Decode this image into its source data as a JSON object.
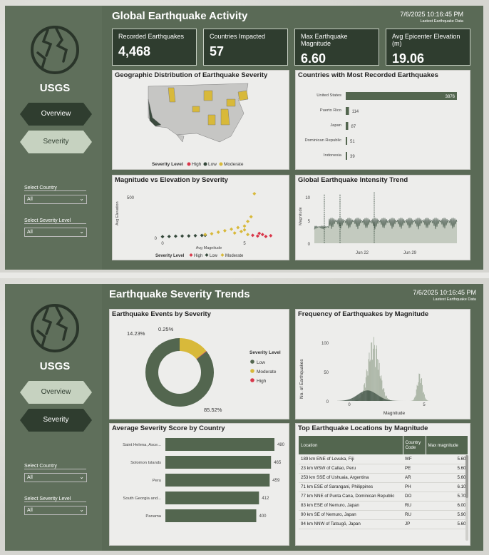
{
  "colors": {
    "dark_green": "#34483a",
    "moderate": "#d8b93a",
    "high": "#d9374a",
    "panel": "#5a6a56"
  },
  "page1": {
    "title": "Global Earthquake Activity",
    "datetime": "7/6/2025 10:16:45 PM",
    "datetime_sub": "Lastest Earthquake Data",
    "logo_icon": "earth-cracked-icon",
    "brand": "USGS",
    "nav": {
      "overview": "Overview",
      "severity": "Severity"
    },
    "filters": {
      "country_label": "Select Country",
      "country_value": "All",
      "severity_label": "Select Severity Level",
      "severity_value": "All"
    },
    "kpis": [
      {
        "label": "Recorded Earthquakes",
        "value": "4,468"
      },
      {
        "label": "Countries Impacted",
        "value": "57"
      },
      {
        "label": "Max Earthquake Magnitude",
        "value": "6.60"
      },
      {
        "label": "Avg Epicenter Elevation (m)",
        "value": "19.06"
      }
    ],
    "map": {
      "title": "Geographic Distribution of Earthquake Severity",
      "legend_title": "Severity Level",
      "legend": [
        "High",
        "Low",
        "Moderate"
      ]
    },
    "scatter_title": "Magnitude vs Elevation by Severity",
    "countries_title": "Countries with Most Recorded Earthquakes",
    "trend_title": "Global Earthquake Intensity Trend"
  },
  "page2": {
    "title": "Earthquake Severity Trends",
    "datetime": "7/6/2025 10:16:45 PM",
    "datetime_sub": "Lastest Earthquake Data",
    "logo_icon": "earth-cracked-icon",
    "brand": "USGS",
    "nav": {
      "overview": "Overview",
      "severity": "Severity"
    },
    "filters": {
      "country_label": "Select Country",
      "country_value": "All",
      "severity_label": "Select Severity Level",
      "severity_value": "All"
    },
    "donut_title": "Earthquake Events by Severity",
    "freq_title": "Frequency of Earthquakes by Magnitude",
    "score_title": "Average Severity Score by Country",
    "table": {
      "title": "Top Earthquake Locations by Magnitude",
      "headers": [
        "Location",
        "Country Code",
        "Max magnitude"
      ],
      "rows": [
        [
          "189 km ENE of Levuka, Fiji",
          "WF",
          "5.60"
        ],
        [
          "23 km WSW of Callao, Peru",
          "PE",
          "5.60"
        ],
        [
          "253 km SSE of Ushuaia, Argentina",
          "AR",
          "5.60"
        ],
        [
          "71 km ESE of Sarangani, Philippines",
          "PH",
          "6.10"
        ],
        [
          "77 km NNE of Punta Cana, Dominican Republic",
          "DO",
          "5.70"
        ],
        [
          "83 km ESE of Nemuro, Japan",
          "RU",
          "6.00"
        ],
        [
          "90 km SE of Nemuro, Japan",
          "RU",
          "5.90"
        ],
        [
          "94 km NNW of Tatsugō, Japan",
          "JP",
          "5.60"
        ]
      ]
    }
  },
  "chart_data": [
    {
      "type": "bar",
      "title": "Countries with Most Recorded Earthquakes",
      "categories": [
        "United States",
        "Puerto Rico",
        "Japan",
        "Dominican Republic",
        "Indonesia"
      ],
      "values": [
        3876,
        114,
        87,
        51,
        39
      ],
      "orientation": "horizontal"
    },
    {
      "type": "scatter",
      "title": "Magnitude vs Elevation by Severity",
      "xlabel": "Avg Magnitude",
      "ylabel": "Avg Elevation",
      "x_ticks": [
        "0",
        "5"
      ],
      "y_ticks": [
        "0",
        "500"
      ],
      "legend_title": "Severity Level",
      "series": [
        {
          "name": "High",
          "color": "#d9374a",
          "points": [
            [
              5.5,
              20
            ],
            [
              5.8,
              10
            ],
            [
              6.1,
              30
            ],
            [
              6.3,
              5
            ],
            [
              6.6,
              15
            ],
            [
              5.9,
              45
            ]
          ]
        },
        {
          "name": "Low",
          "color": "#34483a",
          "points": [
            [
              0.0,
              2
            ],
            [
              0.4,
              5
            ],
            [
              0.8,
              8
            ],
            [
              1.2,
              10
            ],
            [
              1.6,
              12
            ],
            [
              2.0,
              15
            ],
            [
              2.4,
              18
            ],
            [
              2.6,
              20
            ]
          ]
        },
        {
          "name": "Moderate",
          "color": "#d8b93a",
          "points": [
            [
              2.6,
              30
            ],
            [
              3.0,
              40
            ],
            [
              3.4,
              60
            ],
            [
              3.8,
              80
            ],
            [
              4.2,
              100
            ],
            [
              4.6,
              120
            ],
            [
              5.0,
              140
            ],
            [
              5.2,
              200
            ],
            [
              5.4,
              260
            ],
            [
              5.6,
              560
            ],
            [
              4.8,
              70
            ],
            [
              4.4,
              50
            ],
            [
              5.0,
              90
            ],
            [
              5.2,
              30
            ]
          ]
        }
      ]
    },
    {
      "type": "line",
      "title": "Global Earthquake Intensity Trend",
      "ylabel": "Magnitude",
      "x_ticks": [
        "Jun 22",
        "Jun 29"
      ],
      "y_ticks": [
        "0",
        "5",
        "10"
      ],
      "approx_magnitude_range": [
        0,
        11
      ]
    },
    {
      "type": "pie",
      "title": "Earthquake Events by Severity",
      "legend_title": "Severity Level",
      "slices": [
        {
          "name": "Low",
          "value": 85.52,
          "label": "85.52%",
          "color": "#53664f"
        },
        {
          "name": "Moderate",
          "value": 14.23,
          "label": "14.23%",
          "color": "#d8b93a"
        },
        {
          "name": "High",
          "value": 0.25,
          "label": "0.25%",
          "color": "#d9374a"
        }
      ]
    },
    {
      "type": "bar",
      "title": "Frequency of Earthquakes by Magnitude",
      "xlabel": "Magnitude",
      "ylabel": "No. of Earthquakes",
      "x_ticks": [
        "0",
        "5"
      ],
      "y_ticks": [
        "0",
        "50",
        "100"
      ],
      "values_approx": [
        {
          "x": 1.0,
          "y": 40
        },
        {
          "x": 1.6,
          "y": 110
        },
        {
          "x": 2.0,
          "y": 95
        },
        {
          "x": 2.6,
          "y": 60
        },
        {
          "x": 3.5,
          "y": 15
        },
        {
          "x": 4.5,
          "y": 30
        },
        {
          "x": 4.8,
          "y": 50
        },
        {
          "x": 5.5,
          "y": 8
        }
      ]
    },
    {
      "type": "bar",
      "title": "Average Severity Score by Country",
      "categories": [
        "Saint Helena, Asce...",
        "Solomon Islands",
        "Peru",
        "South Georgia and...",
        "Panama"
      ],
      "values": [
        480,
        465,
        459,
        412,
        400
      ],
      "orientation": "horizontal"
    }
  ]
}
